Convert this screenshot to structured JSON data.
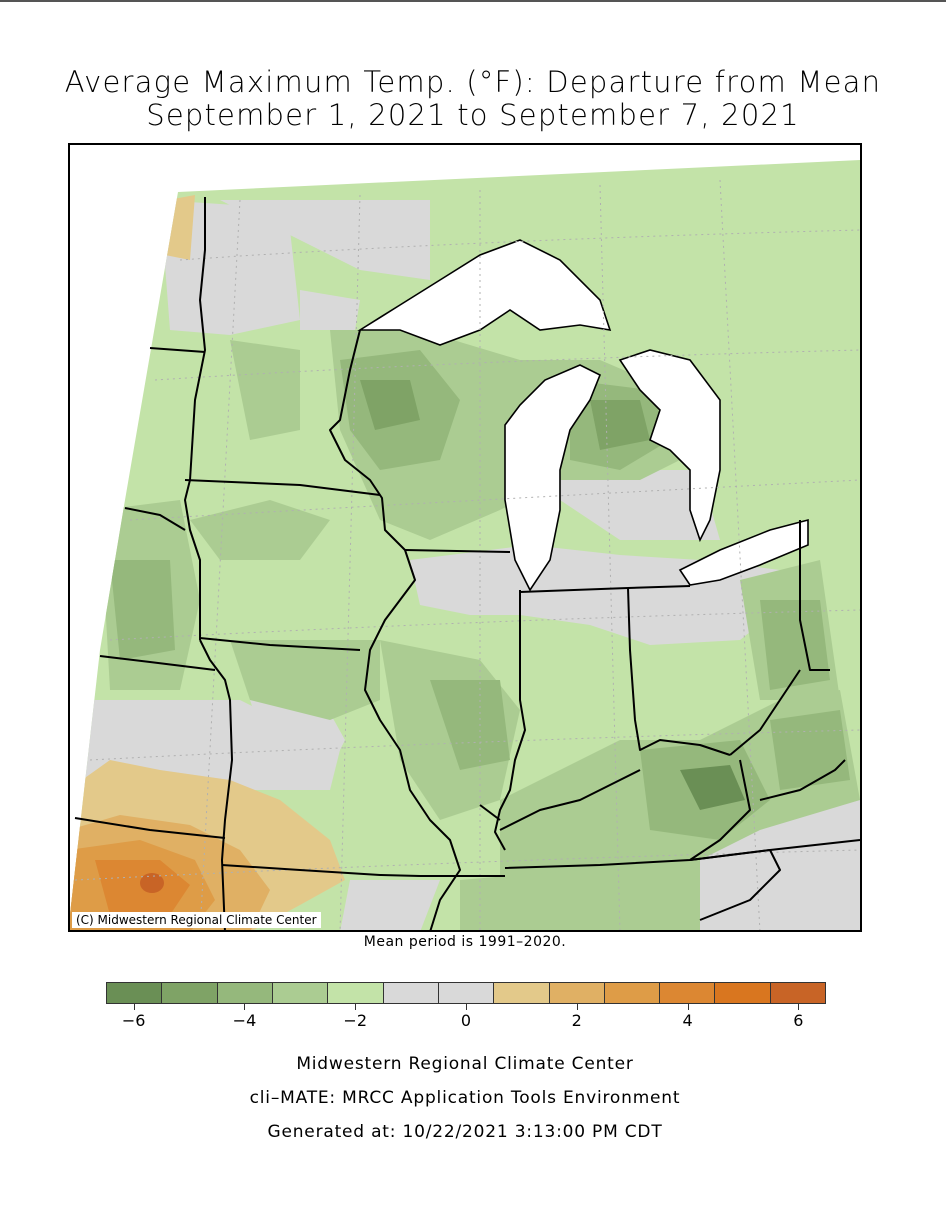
{
  "title": {
    "line1": "Average Maximum Temp. (°F): Departure from Mean",
    "line2": "September 1, 2021 to September 7, 2021"
  },
  "credit": "(C) Midwestern Regional Climate Center",
  "mean_note": "Mean period is 1991–2020.",
  "legend": {
    "colors": [
      "#6a8f55",
      "#7fa366",
      "#95b87c",
      "#abcc92",
      "#c3e3a8",
      "#d9d9d9",
      "#d9d9d9",
      "#e3c98a",
      "#e0b064",
      "#de9c47",
      "#dc8732",
      "#d9761f",
      "#c86426"
    ],
    "ticks": [
      {
        "value": -6,
        "label": "−6"
      },
      {
        "value": -4,
        "label": "−4"
      },
      {
        "value": -2,
        "label": "−2"
      },
      {
        "value": 0,
        "label": "0"
      },
      {
        "value": 2,
        "label": "2"
      },
      {
        "value": 4,
        "label": "4"
      },
      {
        "value": 6,
        "label": "6"
      }
    ],
    "range": [
      -6.5,
      6.5
    ]
  },
  "footer": {
    "line1": "Midwestern Regional Climate Center",
    "line2": "cli–MATE: MRCC Application Tools Environment",
    "line3": "Generated at: 10/22/2021 3:13:00 PM CDT"
  }
}
